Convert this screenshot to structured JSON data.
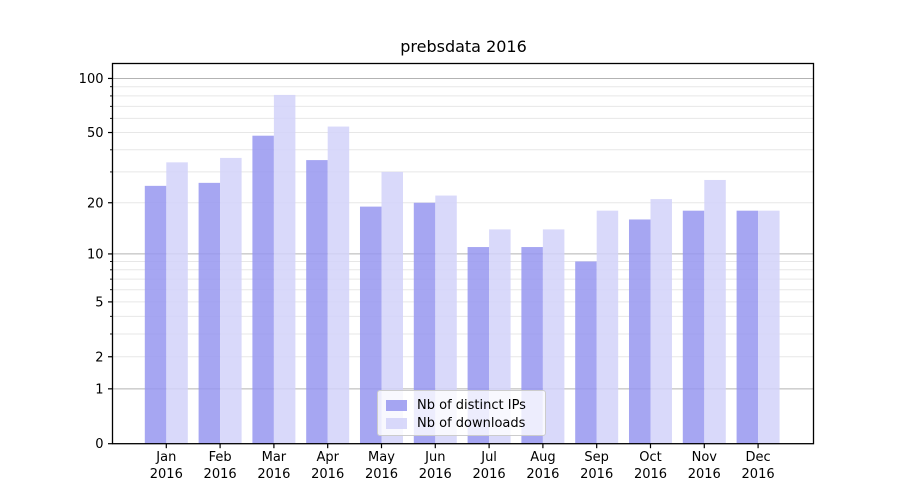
{
  "chart_data": {
    "type": "bar",
    "title": "prebsdata 2016",
    "categories": [
      "Jan",
      "Feb",
      "Mar",
      "Apr",
      "May",
      "Jun",
      "Jul",
      "Aug",
      "Sep",
      "Oct",
      "Nov",
      "Dec"
    ],
    "category_year": "2016",
    "series": [
      {
        "name": "Nb of distinct IPs",
        "color": "#9696f0",
        "values": [
          25,
          26,
          48,
          35,
          19,
          20,
          11,
          11,
          9,
          16,
          18,
          18
        ]
      },
      {
        "name": "Nb of downloads",
        "color": "#d2d2f9",
        "values": [
          34,
          36,
          81,
          54,
          30,
          22,
          14,
          14,
          18,
          21,
          27,
          18
        ]
      }
    ],
    "y_scale": "log1p",
    "y_ticks": [
      0,
      1,
      2,
      5,
      10,
      20,
      50,
      100
    ],
    "y_minor_ticks": [
      3,
      4,
      6,
      7,
      8,
      9,
      30,
      40,
      60,
      70,
      80,
      90
    ],
    "y_decade_lines": [
      1,
      10,
      100
    ],
    "ylim": [
      0,
      121
    ],
    "grid": "on",
    "legend_position": "lower center",
    "colors": {
      "bar_opacity": 0.85,
      "grid_decade": "#b3b3b3",
      "grid_light": "#e7e7e7",
      "spine": "#000000",
      "tick": "#000000",
      "legend_border": "#cccccc"
    }
  }
}
